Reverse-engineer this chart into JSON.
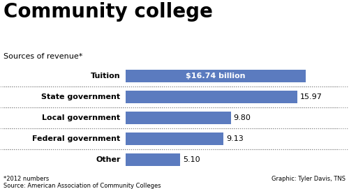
{
  "title": "Community college",
  "subtitle": "Sources of revenue*",
  "categories": [
    "Tuition",
    "State government",
    "Local government",
    "Federal government",
    "Other"
  ],
  "values": [
    16.74,
    15.97,
    9.8,
    9.13,
    5.1
  ],
  "bar_color": "#5b7bbf",
  "label_inside": "$16.74 billion",
  "labels_outside": [
    "15.97",
    "9.80",
    "9.13",
    "5.10"
  ],
  "footer_left": "*2012 numbers\nSource: American Association of Community Colleges",
  "footer_right": "Graphic: Tyler Davis, TNS",
  "bg_color": "#ffffff",
  "bar_height": 0.6,
  "xlim_max": 19.5,
  "title_fontsize": 20,
  "subtitle_fontsize": 8,
  "cat_fontsize": 8,
  "val_fontsize": 8,
  "footer_fontsize": 6
}
